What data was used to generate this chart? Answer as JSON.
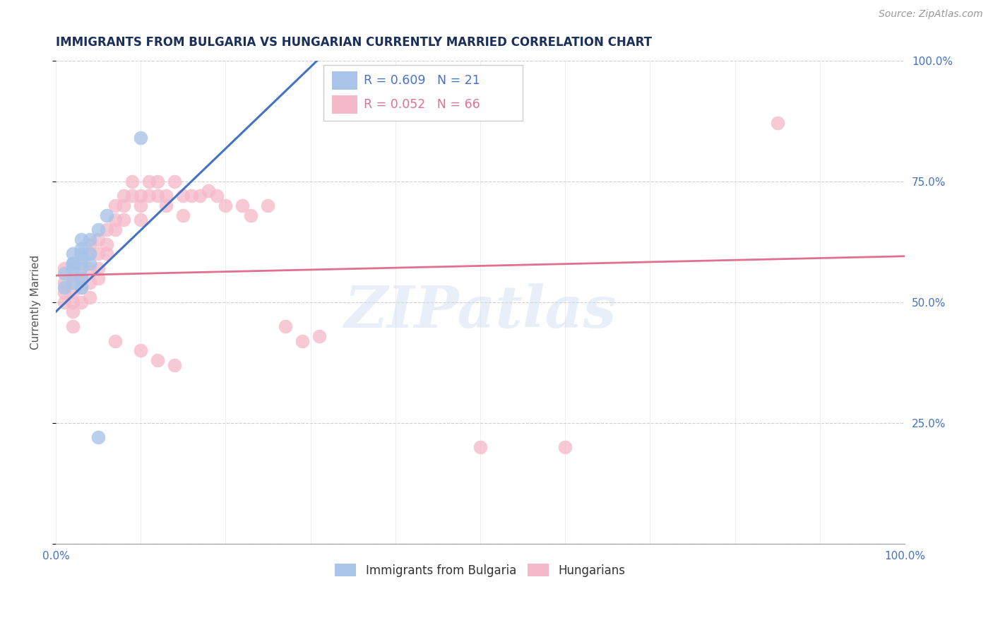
{
  "title": "IMMIGRANTS FROM BULGARIA VS HUNGARIAN CURRENTLY MARRIED CORRELATION CHART",
  "source": "Source: ZipAtlas.com",
  "ylabel": "Currently Married",
  "legend_label1": "Immigrants from Bulgaria",
  "legend_label2": "Hungarians",
  "r1": 0.609,
  "n1": 21,
  "r2": 0.052,
  "n2": 66,
  "color1": "#a8c4e8",
  "color2": "#f5b8c8",
  "line1_color": "#4472c4",
  "line2_color": "#e07090",
  "watermark": "ZIPatlas",
  "xmin": 0.0,
  "xmax": 1.0,
  "ymin": 0.0,
  "ymax": 1.0,
  "bg_color": "#ffffff",
  "grid_color": "#d0d0d0",
  "bul_x": [
    0.01,
    0.01,
    0.02,
    0.02,
    0.02,
    0.02,
    0.02,
    0.03,
    0.03,
    0.03,
    0.03,
    0.03,
    0.03,
    0.03,
    0.04,
    0.04,
    0.04,
    0.05,
    0.06,
    0.1,
    0.05
  ],
  "bul_y": [
    0.56,
    0.53,
    0.58,
    0.6,
    0.58,
    0.57,
    0.54,
    0.6,
    0.63,
    0.61,
    0.59,
    0.57,
    0.55,
    0.53,
    0.63,
    0.6,
    0.58,
    0.65,
    0.68,
    0.84,
    0.22
  ],
  "hun_x": [
    0.01,
    0.01,
    0.01,
    0.01,
    0.02,
    0.02,
    0.02,
    0.02,
    0.02,
    0.02,
    0.02,
    0.03,
    0.03,
    0.03,
    0.03,
    0.03,
    0.04,
    0.04,
    0.04,
    0.04,
    0.04,
    0.05,
    0.05,
    0.05,
    0.05,
    0.06,
    0.06,
    0.06,
    0.07,
    0.07,
    0.07,
    0.08,
    0.08,
    0.08,
    0.09,
    0.09,
    0.1,
    0.1,
    0.1,
    0.11,
    0.11,
    0.12,
    0.12,
    0.13,
    0.13,
    0.14,
    0.15,
    0.15,
    0.16,
    0.17,
    0.18,
    0.19,
    0.2,
    0.22,
    0.23,
    0.25,
    0.27,
    0.29,
    0.31,
    0.85,
    0.07,
    0.1,
    0.12,
    0.14,
    0.5,
    0.6
  ],
  "hun_y": [
    0.57,
    0.54,
    0.52,
    0.5,
    0.58,
    0.57,
    0.55,
    0.52,
    0.5,
    0.48,
    0.45,
    0.6,
    0.58,
    0.55,
    0.53,
    0.5,
    0.62,
    0.6,
    0.57,
    0.54,
    0.51,
    0.63,
    0.6,
    0.57,
    0.55,
    0.65,
    0.62,
    0.6,
    0.7,
    0.67,
    0.65,
    0.72,
    0.7,
    0.67,
    0.75,
    0.72,
    0.72,
    0.7,
    0.67,
    0.75,
    0.72,
    0.75,
    0.72,
    0.72,
    0.7,
    0.75,
    0.72,
    0.68,
    0.72,
    0.72,
    0.73,
    0.72,
    0.7,
    0.7,
    0.68,
    0.7,
    0.45,
    0.42,
    0.43,
    0.87,
    0.42,
    0.4,
    0.38,
    0.37,
    0.2,
    0.2
  ],
  "line1_x0": 0.0,
  "line1_y0": 0.48,
  "line1_x1": 0.32,
  "line1_y1": 1.02,
  "line2_x0": 0.0,
  "line2_y0": 0.555,
  "line2_x1": 1.0,
  "line2_y1": 0.595
}
